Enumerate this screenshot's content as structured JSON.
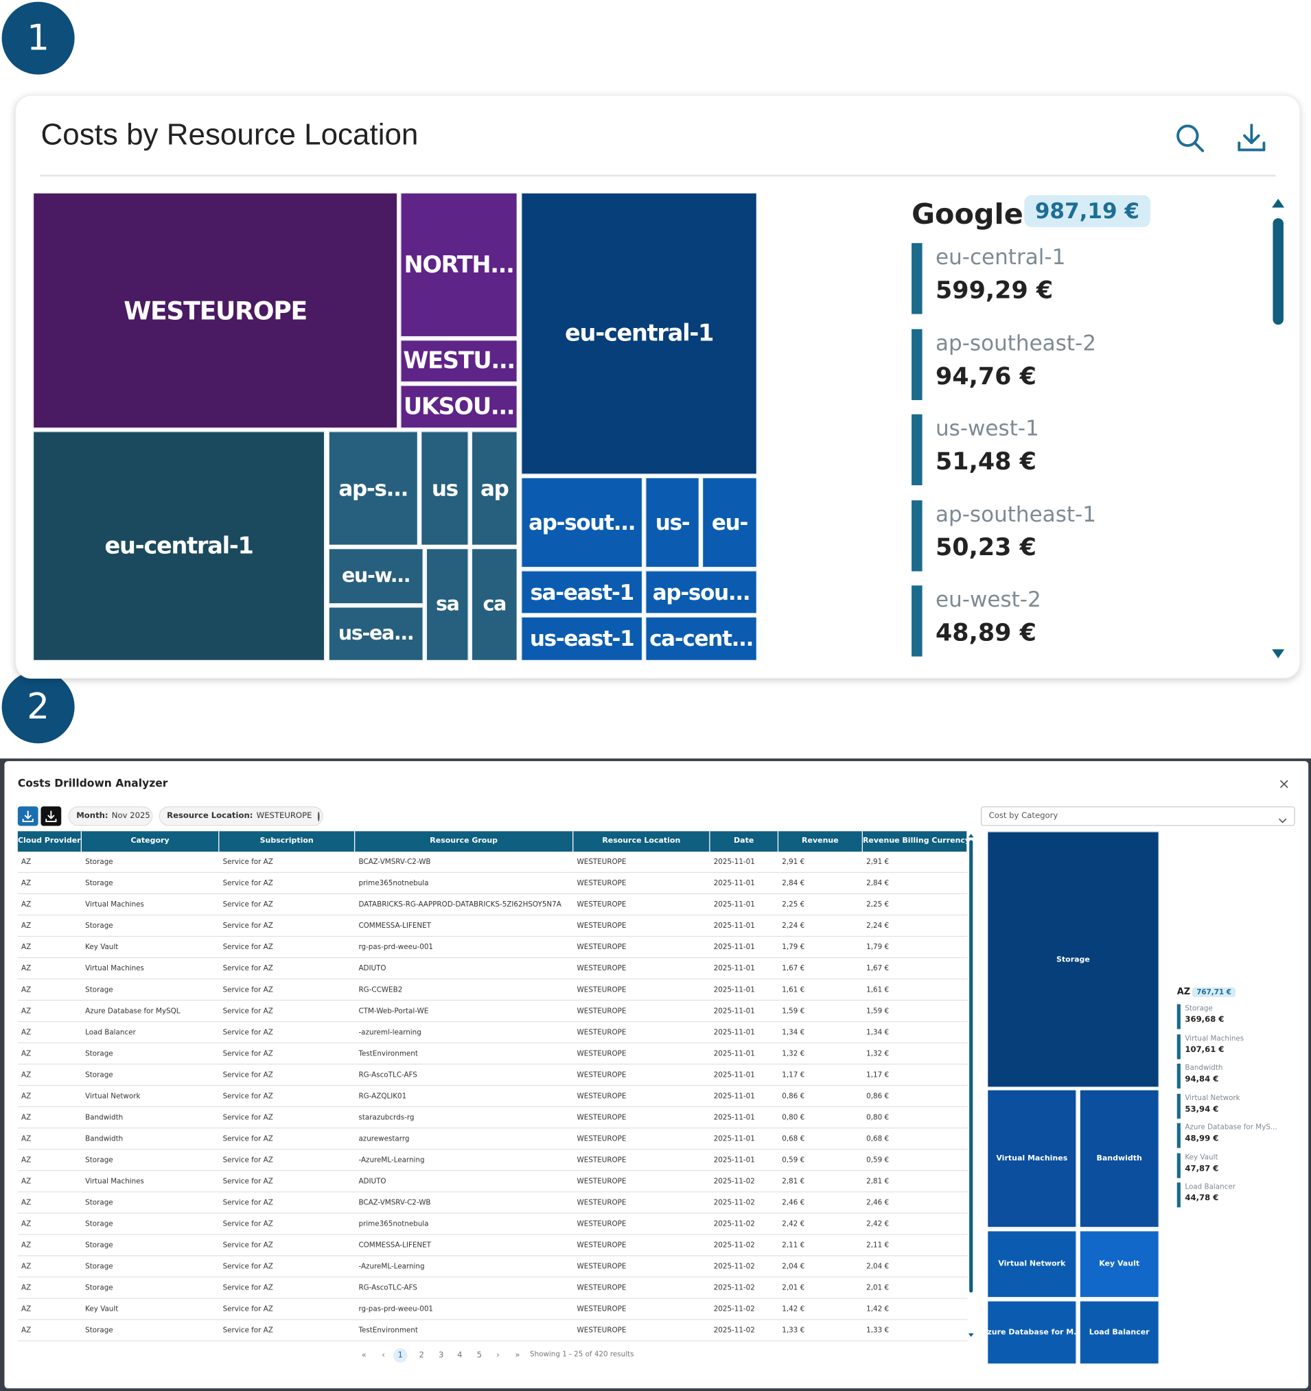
{
  "badges": [
    "1",
    "2"
  ],
  "panel1": {
    "title": "Costs by Resource Location",
    "treemap": [
      "WESTEUROPE",
      "NORTH...",
      "WESTU...",
      "UKSOU...",
      "eu-central-1",
      "eu-central-1",
      "ap-s...",
      "us",
      "ap",
      "eu-w...",
      "us-ea...",
      "sa",
      "ca",
      "ap-sout...",
      "us-",
      "eu-",
      "sa-east-1",
      "ap-sou...",
      "us-east-1",
      "ca-cent..."
    ],
    "legend": {
      "group": "Google",
      "total": "987,19 €",
      "items": [
        {
          "name": "eu-central-1",
          "value": "599,29 €"
        },
        {
          "name": "ap-southeast-2",
          "value": "94,76 €"
        },
        {
          "name": "us-west-1",
          "value": "51,48 €"
        },
        {
          "name": "ap-southeast-1",
          "value": "50,23 €"
        },
        {
          "name": "eu-west-2",
          "value": "48,89 €"
        }
      ]
    }
  },
  "panel2": {
    "title": "Costs Drilldown Analyzer",
    "close": "×",
    "filters": [
      {
        "label": "Month:",
        "value": "Nov 2025"
      },
      {
        "label": "Resource Location:",
        "value": "WESTEUROPE"
      }
    ],
    "dropdown": "Cost by Category",
    "table": {
      "columns": [
        "Cloud Provider",
        "Category",
        "Subscription",
        "Resource Group",
        "Resource Location",
        "Date",
        "Revenue",
        "Revenue Billing Currency"
      ],
      "rows": [
        [
          "AZ",
          "Storage",
          "Service for AZ",
          "BCAZ-VMSRV-C2-WB",
          "WESTEUROPE",
          "2025-11-01",
          "2,91 €",
          "2,91 €"
        ],
        [
          "AZ",
          "Storage",
          "Service for AZ",
          "prime365notnebula",
          "WESTEUROPE",
          "2025-11-01",
          "2,84 €",
          "2,84 €"
        ],
        [
          "AZ",
          "Virtual Machines",
          "Service for AZ",
          "DATABRICKS-RG-AAPPROD-DATABRICKS-5ZI62HSOY5N7A",
          "WESTEUROPE",
          "2025-11-01",
          "2,25 €",
          "2,25 €"
        ],
        [
          "AZ",
          "Storage",
          "Service for AZ",
          "COMMESSA-LIFENET",
          "WESTEUROPE",
          "2025-11-01",
          "2,24 €",
          "2,24 €"
        ],
        [
          "AZ",
          "Key Vault",
          "Service for AZ",
          "rg-pas-prd-weeu-001",
          "WESTEUROPE",
          "2025-11-01",
          "1,79 €",
          "1,79 €"
        ],
        [
          "AZ",
          "Virtual Machines",
          "Service for AZ",
          "ADIUTO",
          "WESTEUROPE",
          "2025-11-01",
          "1,67 €",
          "1,67 €"
        ],
        [
          "AZ",
          "Storage",
          "Service for AZ",
          "RG-CCWEB2",
          "WESTEUROPE",
          "2025-11-01",
          "1,61 €",
          "1,61 €"
        ],
        [
          "AZ",
          "Azure Database for MySQL",
          "Service for AZ",
          "CTM-Web-Portal-WE",
          "WESTEUROPE",
          "2025-11-01",
          "1,59 €",
          "1,59 €"
        ],
        [
          "AZ",
          "Load Balancer",
          "Service for AZ",
          "-azureml-learning",
          "WESTEUROPE",
          "2025-11-01",
          "1,34 €",
          "1,34 €"
        ],
        [
          "AZ",
          "Storage",
          "Service for AZ",
          "TestEnvironment",
          "WESTEUROPE",
          "2025-11-01",
          "1,32 €",
          "1,32 €"
        ],
        [
          "AZ",
          "Storage",
          "Service for AZ",
          "RG-AscoTLC-AFS",
          "WESTEUROPE",
          "2025-11-01",
          "1,17 €",
          "1,17 €"
        ],
        [
          "AZ",
          "Virtual Network",
          "Service for AZ",
          "RG-AZQLIK01",
          "WESTEUROPE",
          "2025-11-01",
          "0,86 €",
          "0,86 €"
        ],
        [
          "AZ",
          "Bandwidth",
          "Service for AZ",
          "starazubcrds-rg",
          "WESTEUROPE",
          "2025-11-01",
          "0,80 €",
          "0,80 €"
        ],
        [
          "AZ",
          "Bandwidth",
          "Service for AZ",
          "azurewestarrg",
          "WESTEUROPE",
          "2025-11-01",
          "0,68 €",
          "0,68 €"
        ],
        [
          "AZ",
          "Storage",
          "Service for AZ",
          "-AzureML-Learning",
          "WESTEUROPE",
          "2025-11-01",
          "0,59 €",
          "0,59 €"
        ],
        [
          "AZ",
          "Virtual Machines",
          "Service for AZ",
          "ADIUTO",
          "WESTEUROPE",
          "2025-11-02",
          "2,81 €",
          "2,81 €"
        ],
        [
          "AZ",
          "Storage",
          "Service for AZ",
          "BCAZ-VMSRV-C2-WB",
          "WESTEUROPE",
          "2025-11-02",
          "2,46 €",
          "2,46 €"
        ],
        [
          "AZ",
          "Storage",
          "Service for AZ",
          "prime365notnebula",
          "WESTEUROPE",
          "2025-11-02",
          "2,42 €",
          "2,42 €"
        ],
        [
          "AZ",
          "Storage",
          "Service for AZ",
          "COMMESSA-LIFENET",
          "WESTEUROPE",
          "2025-11-02",
          "2,11 €",
          "2,11 €"
        ],
        [
          "AZ",
          "Storage",
          "Service for AZ",
          "-AzureML-Learning",
          "WESTEUROPE",
          "2025-11-02",
          "2,04 €",
          "2,04 €"
        ],
        [
          "AZ",
          "Storage",
          "Service for AZ",
          "RG-AscoTLC-AFS",
          "WESTEUROPE",
          "2025-11-02",
          "2,01 €",
          "2,01 €"
        ],
        [
          "AZ",
          "Key Vault",
          "Service for AZ",
          "rg-pas-prd-weeu-001",
          "WESTEUROPE",
          "2025-11-02",
          "1,42 €",
          "1,42 €"
        ],
        [
          "AZ",
          "Storage",
          "Service for AZ",
          "TestEnvironment",
          "WESTEUROPE",
          "2025-11-02",
          "1,33 €",
          "1,33 €"
        ]
      ]
    },
    "pagination": {
      "pages": [
        "«",
        "‹",
        "1",
        "2",
        "3",
        "4",
        "5",
        "›",
        "»"
      ],
      "summary": "Showing 1 - 25 of 420 results"
    },
    "treemap": [
      "Storage",
      "Virtual Machines",
      "Bandwidth",
      "Virtual Network",
      "Key Vault",
      "Azure Database for M...",
      "Load Balancer"
    ],
    "legend": {
      "group": "AZ",
      "total": "767,71 €",
      "items": [
        {
          "name": "Storage",
          "value": "369,68 €"
        },
        {
          "name": "Virtual Machines",
          "value": "107,61 €"
        },
        {
          "name": "Bandwidth",
          "value": "94,84 €"
        },
        {
          "name": "Virtual Network",
          "value": "53,94 €"
        },
        {
          "name": "Azure Database for MyS...",
          "value": "48,99 €"
        },
        {
          "name": "Key Vault",
          "value": "47,87 €"
        },
        {
          "name": "Load Balancer",
          "value": "44,78 €"
        }
      ]
    }
  }
}
